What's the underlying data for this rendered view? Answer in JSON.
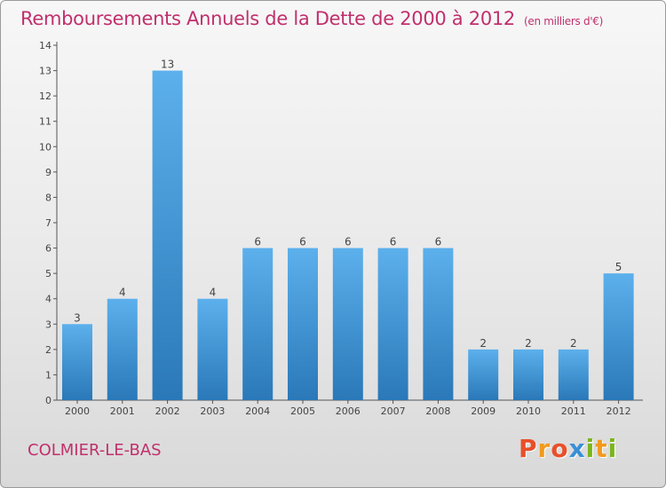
{
  "header": {
    "title": "Remboursements Annuels de la Dette de 2000 à 2012",
    "unit": "(en milliers d'€)"
  },
  "footer": {
    "commune": "COLMIER-LE-BAS",
    "brand": "Proxiti",
    "brand_colors": [
      "#e8502a",
      "#f29a1d",
      "#e8502a",
      "#3a8fd6",
      "#7ab51d",
      "#f29a1d",
      "#7ab51d"
    ]
  },
  "colors": {
    "accent": "#c0306c",
    "bar_light": "#5cb0ec",
    "bar_dark": "#2a78b8"
  },
  "chart_data": {
    "type": "bar",
    "title": "Remboursements Annuels de la Dette de 2000 à 2012",
    "categories": [
      "2000",
      "2001",
      "2002",
      "2003",
      "2004",
      "2005",
      "2006",
      "2007",
      "2008",
      "2009",
      "2010",
      "2011",
      "2012"
    ],
    "values": [
      3,
      4,
      13,
      4,
      6,
      6,
      6,
      6,
      6,
      2,
      2,
      2,
      5
    ],
    "yticks": [
      0,
      1,
      2,
      3,
      4,
      5,
      6,
      7,
      8,
      9,
      10,
      11,
      12,
      13,
      14
    ],
    "ylim": [
      0,
      14
    ],
    "grid": false
  }
}
